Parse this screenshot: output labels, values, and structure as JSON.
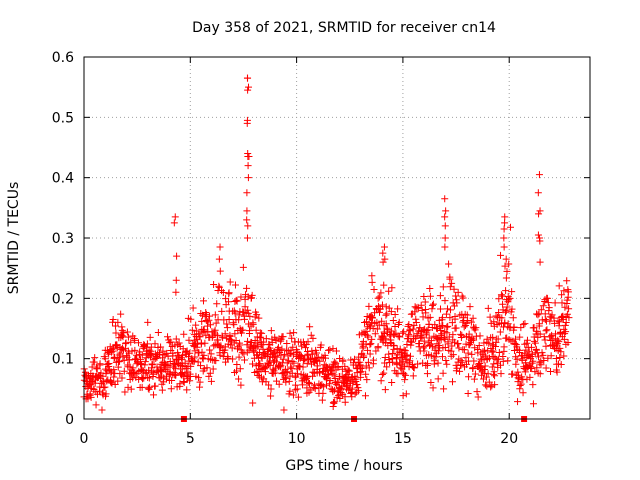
{
  "chart_data": {
    "type": "scatter",
    "title": "Day 358 of 2021, SRMTID for receiver cn14",
    "xlabel": "GPS time / hours",
    "ylabel": "SRMTID / TECUs",
    "xlim": [
      0,
      23.8
    ],
    "ylim": [
      0,
      0.6
    ],
    "xticks": [
      0,
      5,
      10,
      15,
      20
    ],
    "yticks": [
      0,
      0.1,
      0.2,
      0.3,
      0.4,
      0.5,
      0.6
    ],
    "grid": true,
    "marker": "+",
    "series_color": "#ff0000",
    "gap_markers_x": [
      4.7,
      12.7,
      20.7
    ],
    "profile": [
      {
        "t": 0.0,
        "m": 0.06,
        "s": 0.018
      },
      {
        "t": 0.8,
        "m": 0.065,
        "s": 0.018
      },
      {
        "t": 1.2,
        "m": 0.095,
        "s": 0.025
      },
      {
        "t": 1.7,
        "m": 0.115,
        "s": 0.03
      },
      {
        "t": 2.3,
        "m": 0.09,
        "s": 0.025
      },
      {
        "t": 3.0,
        "m": 0.095,
        "s": 0.025
      },
      {
        "t": 3.7,
        "m": 0.085,
        "s": 0.022
      },
      {
        "t": 4.3,
        "m": 0.1,
        "s": 0.03
      },
      {
        "t": 4.7,
        "m": 0.085,
        "s": 0.025
      },
      {
        "t": 5.2,
        "m": 0.12,
        "s": 0.03
      },
      {
        "t": 6.0,
        "m": 0.135,
        "s": 0.035
      },
      {
        "t": 6.5,
        "m": 0.17,
        "s": 0.04
      },
      {
        "t": 7.0,
        "m": 0.15,
        "s": 0.035
      },
      {
        "t": 7.7,
        "m": 0.15,
        "s": 0.05
      },
      {
        "t": 8.3,
        "m": 0.105,
        "s": 0.025
      },
      {
        "t": 9.0,
        "m": 0.095,
        "s": 0.025
      },
      {
        "t": 10.0,
        "m": 0.09,
        "s": 0.025
      },
      {
        "t": 11.0,
        "m": 0.085,
        "s": 0.022
      },
      {
        "t": 11.8,
        "m": 0.065,
        "s": 0.018
      },
      {
        "t": 12.5,
        "m": 0.06,
        "s": 0.015
      },
      {
        "t": 13.0,
        "m": 0.09,
        "s": 0.025
      },
      {
        "t": 13.5,
        "m": 0.15,
        "s": 0.04
      },
      {
        "t": 14.3,
        "m": 0.14,
        "s": 0.04
      },
      {
        "t": 15.0,
        "m": 0.1,
        "s": 0.03
      },
      {
        "t": 15.8,
        "m": 0.15,
        "s": 0.035
      },
      {
        "t": 16.5,
        "m": 0.13,
        "s": 0.035
      },
      {
        "t": 17.2,
        "m": 0.15,
        "s": 0.04
      },
      {
        "t": 18.0,
        "m": 0.12,
        "s": 0.035
      },
      {
        "t": 18.8,
        "m": 0.085,
        "s": 0.025
      },
      {
        "t": 19.5,
        "m": 0.13,
        "s": 0.035
      },
      {
        "t": 19.9,
        "m": 0.19,
        "s": 0.05
      },
      {
        "t": 20.5,
        "m": 0.08,
        "s": 0.025
      },
      {
        "t": 21.0,
        "m": 0.095,
        "s": 0.03
      },
      {
        "t": 21.5,
        "m": 0.16,
        "s": 0.04
      },
      {
        "t": 22.2,
        "m": 0.13,
        "s": 0.035
      },
      {
        "t": 22.8,
        "m": 0.175,
        "s": 0.03
      }
    ],
    "peaks": [
      {
        "t": 4.3,
        "values": [
          0.335,
          0.325,
          0.27,
          0.23,
          0.21
        ]
      },
      {
        "t": 6.4,
        "values": [
          0.285,
          0.265,
          0.245
        ]
      },
      {
        "t": 7.7,
        "values": [
          0.565,
          0.565,
          0.55,
          0.545,
          0.495,
          0.49,
          0.44,
          0.435,
          0.435,
          0.42,
          0.4,
          0.375,
          0.345,
          0.33,
          0.32,
          0.3
        ]
      },
      {
        "t": 14.1,
        "values": [
          0.285,
          0.275,
          0.265,
          0.26
        ]
      },
      {
        "t": 17.0,
        "values": [
          0.365,
          0.345,
          0.335,
          0.32,
          0.3,
          0.285
        ]
      },
      {
        "t": 19.8,
        "values": [
          0.335,
          0.325,
          0.315,
          0.3,
          0.285,
          0.265
        ]
      },
      {
        "t": 21.4,
        "values": [
          0.405,
          0.375,
          0.345,
          0.34,
          0.305,
          0.3,
          0.295,
          0.26
        ]
      }
    ]
  }
}
